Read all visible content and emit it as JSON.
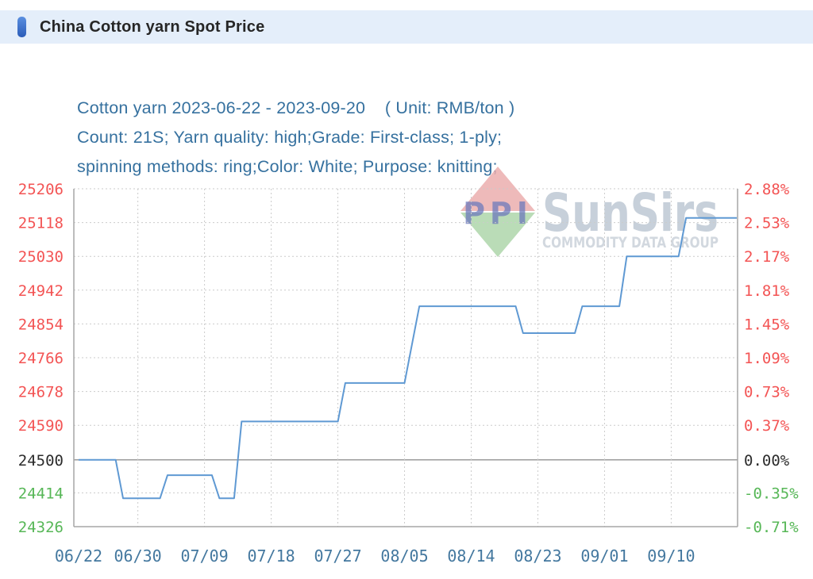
{
  "header": {
    "title": "China Cotton yarn Spot Price"
  },
  "chart_data": {
    "type": "line",
    "line_style": "step",
    "title": "Cotton yarn 2023-06-22 - 2023-09-20    ( Unit: RMB/ton )",
    "subtitle": [
      "Count: 21S; Yarn quality: high;Grade: First-class; 1-ply;",
      "spinning methods: ring;Color: White; Purpose: knitting;"
    ],
    "unit": "RMB/ton",
    "date_start": "2023-06-22",
    "date_end": "2023-09-20",
    "baseline_value": 24500,
    "x_total_days": 90,
    "x_ticks": [
      {
        "label": "06/22",
        "day": 0
      },
      {
        "label": "06/30",
        "day": 8
      },
      {
        "label": "07/09",
        "day": 17
      },
      {
        "label": "07/18",
        "day": 26
      },
      {
        "label": "07/27",
        "day": 35
      },
      {
        "label": "08/05",
        "day": 44
      },
      {
        "label": "08/14",
        "day": 53
      },
      {
        "label": "08/23",
        "day": 62
      },
      {
        "label": "09/01",
        "day": 71
      },
      {
        "label": "09/10",
        "day": 80
      }
    ],
    "y_axis": [
      {
        "value": 25206,
        "price_label": "25206",
        "pct_label": "2.88%"
      },
      {
        "value": 25118,
        "price_label": "25118",
        "pct_label": "2.53%"
      },
      {
        "value": 25030,
        "price_label": "25030",
        "pct_label": "2.17%"
      },
      {
        "value": 24942,
        "price_label": "24942",
        "pct_label": "1.81%"
      },
      {
        "value": 24854,
        "price_label": "24854",
        "pct_label": "1.45%"
      },
      {
        "value": 24766,
        "price_label": "24766",
        "pct_label": "1.09%"
      },
      {
        "value": 24678,
        "price_label": "24678",
        "pct_label": "0.73%"
      },
      {
        "value": 24590,
        "price_label": "24590",
        "pct_label": "0.37%"
      },
      {
        "value": 24500,
        "price_label": "24500",
        "pct_label": "0.00%"
      },
      {
        "value": 24414,
        "price_label": "24414",
        "pct_label": "-0.35%"
      },
      {
        "value": 24326,
        "price_label": "24326",
        "pct_label": "-0.71%"
      }
    ],
    "points": [
      {
        "date": "2023-06-22",
        "day": 0,
        "value": 24500
      },
      {
        "date": "2023-06-27",
        "day": 5,
        "value": 24500
      },
      {
        "date": "2023-06-28",
        "day": 6,
        "value": 24400
      },
      {
        "date": "2023-07-03",
        "day": 11,
        "value": 24400
      },
      {
        "date": "2023-07-04",
        "day": 12,
        "value": 24460
      },
      {
        "date": "2023-07-10",
        "day": 18,
        "value": 24460
      },
      {
        "date": "2023-07-11",
        "day": 19,
        "value": 24400
      },
      {
        "date": "2023-07-13",
        "day": 21,
        "value": 24400
      },
      {
        "date": "2023-07-14",
        "day": 22,
        "value": 24600
      },
      {
        "date": "2023-07-27",
        "day": 35,
        "value": 24600
      },
      {
        "date": "2023-07-28",
        "day": 36,
        "value": 24700
      },
      {
        "date": "2023-08-05",
        "day": 44,
        "value": 24700
      },
      {
        "date": "2023-08-07",
        "day": 46,
        "value": 24900
      },
      {
        "date": "2023-08-20",
        "day": 59,
        "value": 24900
      },
      {
        "date": "2023-08-21",
        "day": 60,
        "value": 24830
      },
      {
        "date": "2023-08-28",
        "day": 67,
        "value": 24830
      },
      {
        "date": "2023-08-29",
        "day": 68,
        "value": 24900
      },
      {
        "date": "2023-09-03",
        "day": 73,
        "value": 24900
      },
      {
        "date": "2023-09-04",
        "day": 74,
        "value": 25030
      },
      {
        "date": "2023-09-11",
        "day": 81,
        "value": 25030
      },
      {
        "date": "2023-09-12",
        "day": 82,
        "value": 25130
      },
      {
        "date": "2023-09-20",
        "day": 90,
        "value": 25130
      }
    ],
    "colors": {
      "line": "#5f99d3",
      "up": "#f35454",
      "down": "#57b757",
      "neutral": "#2b2b2b",
      "date_label": "#44789f",
      "grid": "#cbcbcb",
      "plot_border": "#a6a6a6",
      "zero_line": "#9b9b9b"
    }
  },
  "watermark": {
    "logo_text": "PPI",
    "brand": "SunSirs",
    "tagline": "COMMODITY DATA GROUP"
  }
}
